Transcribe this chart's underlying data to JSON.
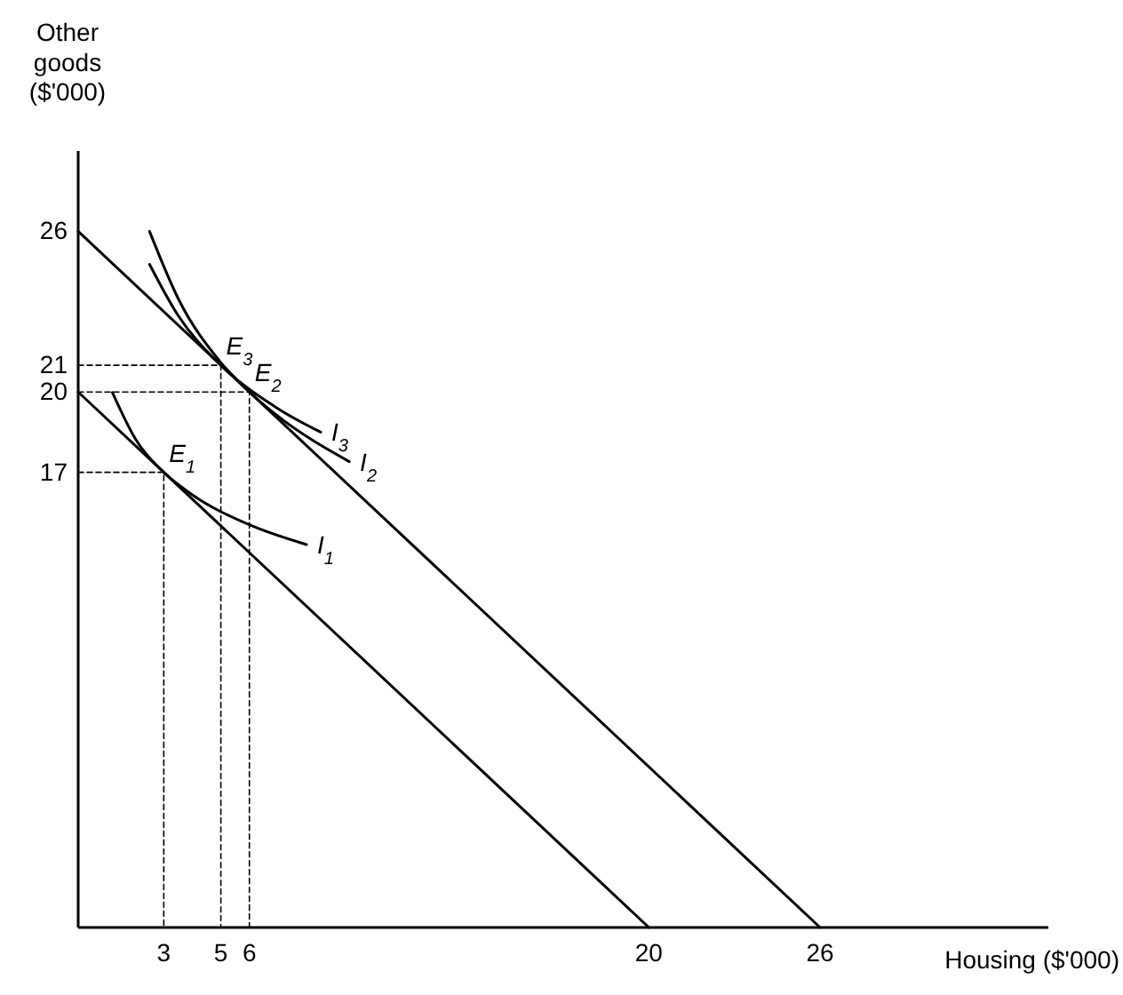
{
  "chart_data": {
    "type": "line",
    "xlabel": "Housing ($'000)",
    "ylabel": "Other goods ($'000)",
    "xlim": [
      0,
      34
    ],
    "ylim": [
      0,
      29
    ],
    "xticks": [
      3,
      5,
      6,
      20,
      26
    ],
    "yticks": [
      17,
      20,
      21,
      26
    ],
    "grid": false,
    "marker": "none",
    "series": [
      {
        "color": "#000000",
        "x": [
          0,
          20
        ],
        "values": [
          20,
          0
        ]
      },
      {
        "color": "#000000",
        "x": [
          0,
          26
        ],
        "values": [
          26,
          0
        ]
      },
      {
        "name": "I$_{1}$",
        "color": "#000000",
        "x": [
          1.2,
          2,
          3,
          4,
          6,
          8
        ],
        "values": [
          19.98,
          18.26,
          17,
          16.16,
          15.04,
          14.3
        ]
      },
      {
        "name": "I$_{2}$",
        "color": "#000000",
        "x": [
          2.5,
          3.5,
          5,
          6,
          7,
          9.5
        ],
        "values": [
          26,
          23.5,
          21.1,
          20,
          19.1,
          17.4
        ]
      },
      {
        "name": "I$_{3}$",
        "color": "#000000",
        "x": [
          2.5,
          3.5,
          5,
          7,
          8.5
        ],
        "values": [
          24.77,
          22.86,
          21,
          19.38,
          18.5
        ]
      },
      {
        "color": "#000000",
        "line_style": "dashed",
        "x": [
          0,
          3,
          3
        ],
        "values": [
          17,
          17,
          0
        ]
      },
      {
        "color": "#000000",
        "line_style": "dashed",
        "x": [
          0,
          5,
          5
        ],
        "values": [
          21,
          21,
          0
        ]
      },
      {
        "color": "#000000",
        "line_style": "dashed",
        "x": [
          0,
          6,
          6
        ],
        "values": [
          20,
          20,
          0
        ]
      }
    ],
    "annotations": [
      {
        "text": "E$_{1}$",
        "x": 3,
        "y": 17
      },
      {
        "text": "E$_{2}$",
        "x": 6,
        "y": 20
      },
      {
        "text": "E$_{3}$",
        "x": 5,
        "y": 21
      }
    ]
  }
}
